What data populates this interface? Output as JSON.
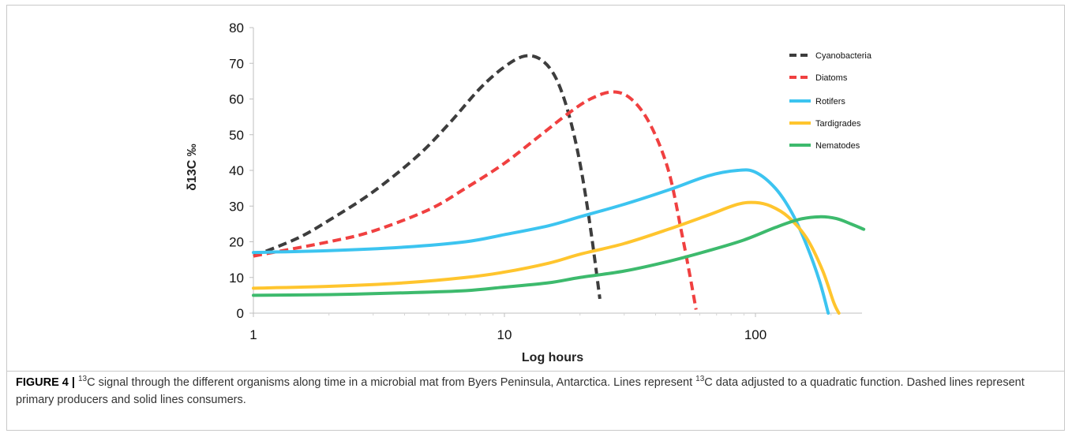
{
  "chart_data": {
    "type": "line",
    "title": "",
    "xlabel": "Log hours",
    "ylabel": "δ13C ‰",
    "xscale": "log",
    "xlim": [
      1,
      300
    ],
    "ylim": [
      0,
      80
    ],
    "x_ticks": [
      1,
      10,
      100
    ],
    "y_ticks": [
      0,
      10,
      20,
      30,
      40,
      50,
      60,
      70,
      80
    ],
    "grid": false,
    "legend_position": "top-right",
    "series": [
      {
        "name": "Cyanobacteria",
        "color": "#3d3d3d",
        "dashed": true,
        "points": [
          [
            1,
            16
          ],
          [
            1.5,
            21
          ],
          [
            2,
            26
          ],
          [
            3,
            34
          ],
          [
            4.5,
            44
          ],
          [
            6,
            53
          ],
          [
            8,
            63
          ],
          [
            10,
            69
          ],
          [
            12,
            72
          ],
          [
            14,
            71
          ],
          [
            16,
            66
          ],
          [
            18,
            56
          ],
          [
            20,
            42
          ],
          [
            22,
            24
          ],
          [
            24,
            4
          ]
        ]
      },
      {
        "name": "Diatoms",
        "color": "#f04040",
        "dashed": true,
        "points": [
          [
            1,
            16
          ],
          [
            2,
            20
          ],
          [
            3,
            23
          ],
          [
            5,
            29
          ],
          [
            7,
            35
          ],
          [
            10,
            42
          ],
          [
            14,
            50
          ],
          [
            18,
            56
          ],
          [
            22,
            60
          ],
          [
            27,
            62
          ],
          [
            32,
            60
          ],
          [
            38,
            53
          ],
          [
            45,
            40
          ],
          [
            51,
            22
          ],
          [
            55,
            10
          ],
          [
            58,
            1
          ]
        ]
      },
      {
        "name": "Rotifers",
        "color": "#3cc4f0",
        "dashed": false,
        "points": [
          [
            1,
            17
          ],
          [
            2,
            17.5
          ],
          [
            4,
            18.5
          ],
          [
            7,
            20
          ],
          [
            10,
            22
          ],
          [
            15,
            24.5
          ],
          [
            20,
            27
          ],
          [
            30,
            30.5
          ],
          [
            45,
            34.5
          ],
          [
            65,
            38.5
          ],
          [
            85,
            40
          ],
          [
            100,
            39.5
          ],
          [
            120,
            35
          ],
          [
            140,
            28
          ],
          [
            160,
            19
          ],
          [
            180,
            9
          ],
          [
            195,
            0
          ]
        ]
      },
      {
        "name": "Tardigrades",
        "color": "#ffc52e",
        "dashed": false,
        "points": [
          [
            1,
            7
          ],
          [
            2,
            7.5
          ],
          [
            4,
            8.5
          ],
          [
            7,
            10
          ],
          [
            10,
            11.5
          ],
          [
            15,
            14
          ],
          [
            20,
            16.5
          ],
          [
            30,
            19.5
          ],
          [
            45,
            23.5
          ],
          [
            65,
            27.5
          ],
          [
            85,
            30.5
          ],
          [
            100,
            31
          ],
          [
            115,
            30
          ],
          [
            135,
            27
          ],
          [
            160,
            21
          ],
          [
            185,
            12
          ],
          [
            205,
            3
          ],
          [
            215,
            0
          ]
        ]
      },
      {
        "name": "Nematodes",
        "color": "#3dba6d",
        "dashed": false,
        "points": [
          [
            1,
            5
          ],
          [
            2,
            5.2
          ],
          [
            4,
            5.7
          ],
          [
            7,
            6.3
          ],
          [
            10,
            7.3
          ],
          [
            15,
            8.5
          ],
          [
            20,
            10
          ],
          [
            30,
            11.8
          ],
          [
            45,
            14.5
          ],
          [
            65,
            17.5
          ],
          [
            90,
            20.5
          ],
          [
            120,
            24
          ],
          [
            150,
            26.3
          ],
          [
            180,
            27
          ],
          [
            210,
            26.5
          ],
          [
            240,
            25
          ],
          [
            270,
            23.5
          ]
        ]
      }
    ]
  },
  "caption": {
    "label": "FIGURE 4 |",
    "sup1": "13",
    "text1": "C signal through the different organisms along time in a microbial mat from Byers Peninsula, Antarctica. Lines represent ",
    "sup2": "13",
    "text2": "C data adjusted to a quadratic function. Dashed lines represent primary producers and solid lines consumers."
  }
}
